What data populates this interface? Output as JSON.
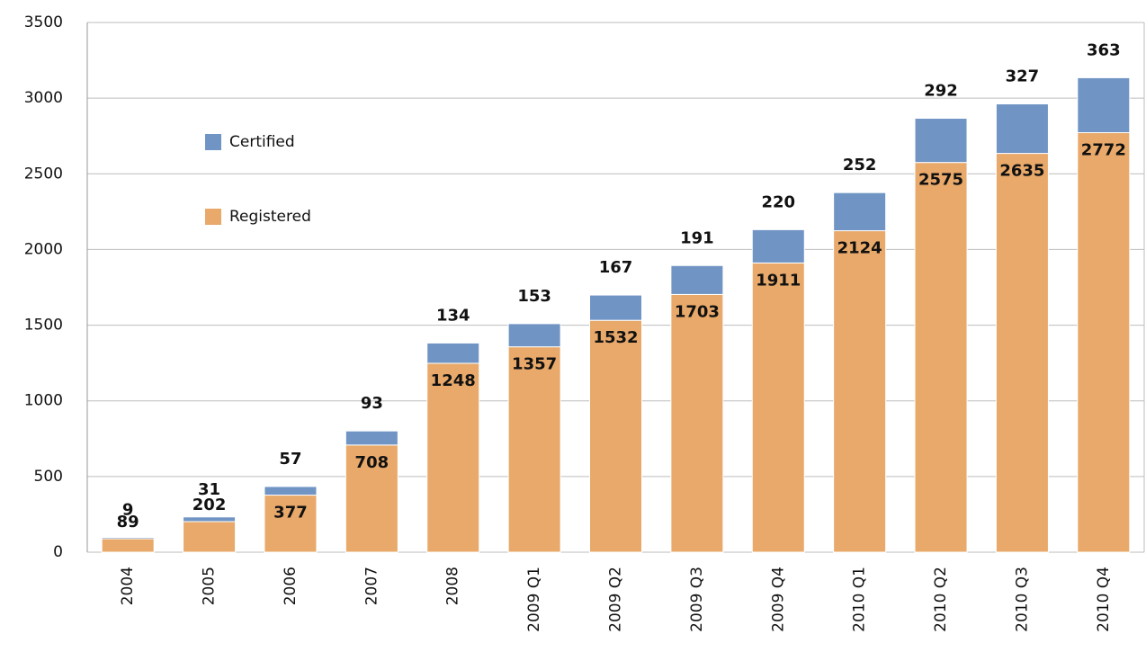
{
  "chart_data": {
    "type": "stacked_bar",
    "categories": [
      "2004",
      "2005",
      "2006",
      "2007",
      "2008",
      "2009 Q1",
      "2009 Q2",
      "2009 Q3",
      "2009 Q4",
      "2010 Q1",
      "2010 Q2",
      "2010 Q3",
      "2010 Q4"
    ],
    "series": [
      {
        "name": "Registered",
        "color": "#e8a96a",
        "values": [
          89,
          202,
          377,
          708,
          1248,
          1357,
          1532,
          1703,
          1911,
          2124,
          2575,
          2635,
          2772
        ]
      },
      {
        "name": "Certified",
        "color": "#7094c4",
        "values": [
          9,
          31,
          57,
          93,
          134,
          153,
          167,
          191,
          220,
          252,
          292,
          327,
          363
        ]
      }
    ],
    "ylim": [
      0,
      3500
    ],
    "yticks": [
      0,
      500,
      1000,
      1500,
      2000,
      2500,
      3000,
      3500
    ],
    "grid": true
  }
}
